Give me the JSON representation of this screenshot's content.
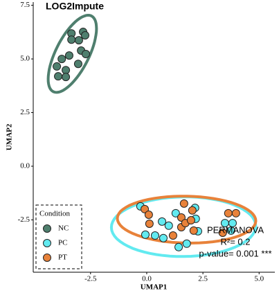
{
  "chart_data": {
    "type": "scatter",
    "title": "LOG2Impute",
    "x_label": "UMAP1",
    "y_label": "UMAP2",
    "xlim": [
      -5.05,
      5.7
    ],
    "ylim": [
      -4.94,
      7.65
    ],
    "xticks": [
      -2.5,
      {
        "value": 0,
        "label": "0.0"
      },
      2.5,
      {
        "value": 5,
        "label": "5.0"
      }
    ],
    "yticks": [
      -2.5,
      {
        "value": 0,
        "label": "0.0"
      },
      2.5,
      {
        "value": 5,
        "label": "5.0"
      },
      7.5
    ],
    "legend_title": "Condition",
    "legend_position": "bottom-left",
    "ellipses": true,
    "annotations": [
      "PERMANOVA",
      "R²= 0.2",
      "p-value= 0.001 ***"
    ],
    "series": [
      {
        "name": "NC",
        "color": "#4f7f6e",
        "x": [
          -3.35,
          -2.83,
          -3.35,
          -3.02,
          -2.74,
          -3.78,
          -3.45,
          -4.0,
          -3.6,
          -3.94,
          -3.6,
          -3.05,
          -2.92,
          -2.71
        ],
        "values": [
          6.19,
          6.26,
          5.9,
          5.87,
          6.1,
          5.0,
          5.16,
          4.65,
          4.48,
          4.19,
          4.16,
          4.77,
          5.39,
          5.23
        ]
      },
      {
        "name": "PC",
        "color": "#62eaf0",
        "x": [
          -0.28,
          0.68,
          0.98,
          -0.06,
          0.37,
          0.74,
          1.42,
          1.78,
          1.29,
          2.15,
          2.18,
          2.28,
          3.48,
          3.82,
          3.75
        ],
        "values": [
          -1.87,
          -2.58,
          -2.77,
          -3.19,
          -3.23,
          -3.35,
          -3.77,
          -3.61,
          -2.19,
          -1.94,
          -2.45,
          -3.03,
          -2.65,
          -2.65,
          -3.0
        ]
      },
      {
        "name": "PT",
        "color": "#e8823a",
        "x": [
          -0.09,
          0.09,
          0.12,
          1.17,
          1.54,
          1.54,
          1.72,
          1.97,
          1.66,
          2.03,
          2.09,
          3.63,
          3.97,
          3.38
        ],
        "values": [
          -2.0,
          -2.26,
          -2.68,
          -3.23,
          -2.39,
          -2.84,
          -2.65,
          -2.52,
          -1.74,
          -2.06,
          -3.0,
          -2.19,
          -2.19,
          -3.1
        ]
      }
    ]
  }
}
